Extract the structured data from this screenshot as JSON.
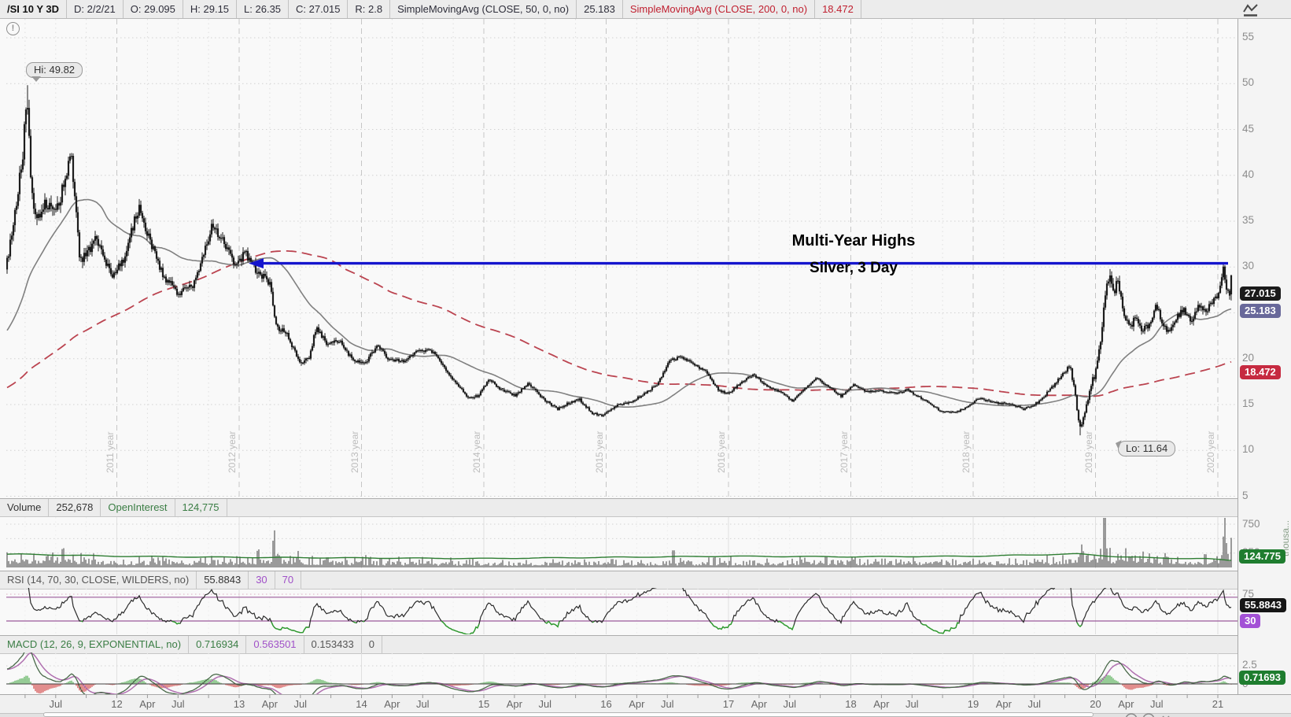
{
  "header": {
    "cells": [
      {
        "text": "/SI 10 Y 3D"
      },
      {
        "text": "D: 2/2/21"
      },
      {
        "text": "O: 29.095"
      },
      {
        "text": "H: 29.15"
      },
      {
        "text": "L: 26.35"
      },
      {
        "text": "C: 27.015"
      },
      {
        "text": "R: 2.8"
      },
      {
        "text": "SimpleMovingAvg (CLOSE, 50, 0, no)"
      },
      {
        "text": "25.183"
      },
      {
        "text": "SimpleMovingAvg (CLOSE, 200, 0, no)"
      },
      {
        "text": "18.472"
      }
    ]
  },
  "main": {
    "hi_label": "Hi: 49.82",
    "lo_label": "Lo: 11.64",
    "annotation_line1": "Multi-Year Highs",
    "annotation_line2": "Silver, 3 Day",
    "price_axis_labels": [
      "55",
      "50",
      "45",
      "40",
      "35",
      "30",
      "20",
      "15",
      "10",
      "5"
    ],
    "year_labels": [
      "2011 year",
      "2012 year",
      "2013 year",
      "2014 year",
      "2015 year",
      "2016 year",
      "2017 year",
      "2018 year",
      "2019 year",
      "2020 year"
    ],
    "bubbles": {
      "close": "27.015",
      "sma50": "25.183",
      "sma200": "18.472"
    }
  },
  "volume": {
    "label": "Volume",
    "value": "252,678",
    "oi_label": "OpenInterest",
    "oi_value": "124,775",
    "axis_labels": [
      "750",
      "250"
    ],
    "bubble": "124.775",
    "unit": "thousa..."
  },
  "rsi": {
    "label": "RSI (14, 70, 30, CLOSE, WILDERS, no)",
    "value": "55.8843",
    "param_low": "30",
    "param_high": "70",
    "axis_label": "75",
    "bubble_value": "55.8843",
    "bubble_low": "30"
  },
  "macd": {
    "label": "MACD (12, 26, 9, EXPONENTIAL, no)",
    "value": "0.716934",
    "signal": "0.563501",
    "hist": "0.153433",
    "zero": "0",
    "axis_high": "2.5",
    "axis_zero": "0",
    "bubble": "0.71693"
  },
  "time_axis": {
    "labels": [
      "Jul",
      "12",
      "Apr",
      "Jul",
      "13",
      "Apr",
      "Jul",
      "14",
      "Apr",
      "Jul",
      "15",
      "Apr",
      "Jul",
      "16",
      "Apr",
      "Jul",
      "17",
      "Apr",
      "Jul",
      "18",
      "Apr",
      "Jul",
      "19",
      "Apr",
      "Jul",
      "20",
      "Apr",
      "Jul",
      "21"
    ]
  },
  "colors": {
    "annotation_blue": "#1515cd",
    "sma50_line": "#808080",
    "sma200_line": "#bb4450",
    "candle": "#1d1d1d",
    "close_bubble": "#1b1b1b",
    "sma50_bubble": "#68689a",
    "sma200_bubble": "#c62a40",
    "green_bubble": "#1f7d2f",
    "purple_bubble": "#a351d6",
    "rsi_band": "#9a5a9a",
    "macd_line": "#4a6a4a",
    "macd_signal": "#b070b0",
    "hist_up": "#33a033",
    "hist_down": "#cc2222",
    "open_interest": "#2e7d32"
  },
  "chart_data": {
    "type": "candlestick",
    "title": "/SI 10 Y 3D (Silver futures, 10 year, 3-day bars)",
    "last_bar": {
      "date": "2/2/21",
      "open": 29.095,
      "high": 29.15,
      "low": 26.35,
      "close": 27.015,
      "range": 2.8
    },
    "hi": 49.82,
    "lo": 11.64,
    "sma50_last": 25.183,
    "sma200_last": 18.472,
    "volume_last": 252678,
    "open_interest_last": 124775,
    "rsi_last": 55.8843,
    "macd_last": {
      "value": 0.716934,
      "signal": 0.563501,
      "hist": 0.153433
    },
    "blue_line_price": 30.4,
    "x_domain_years": [
      2011.086,
      2021.096
    ],
    "y_axis": {
      "min": 5,
      "max": 55,
      "step": 5
    },
    "volume_axis_gridlines": [
      250,
      500,
      750
    ],
    "rsi_lines": {
      "upper": 70,
      "lower": 30,
      "dotted": 75
    },
    "macd_gridline": 2.5,
    "price_anchors": [
      [
        2008.7,
        12.0
      ],
      [
        2009.0,
        12.8
      ],
      [
        2009.4,
        13.5
      ],
      [
        2009.8,
        16.5
      ],
      [
        2010.2,
        17.5
      ],
      [
        2010.6,
        18.6
      ],
      [
        2010.85,
        23.5
      ],
      [
        2011.0,
        28.5
      ],
      [
        2011.09,
        29.5
      ],
      [
        2011.17,
        36
      ],
      [
        2011.23,
        42
      ],
      [
        2011.262,
        49.0
      ],
      [
        2011.3,
        39
      ],
      [
        2011.34,
        34.5
      ],
      [
        2011.42,
        37
      ],
      [
        2011.5,
        35.5
      ],
      [
        2011.58,
        40
      ],
      [
        2011.63,
        42
      ],
      [
        2011.7,
        30.5
      ],
      [
        2011.76,
        31.5
      ],
      [
        2011.83,
        33.5
      ],
      [
        2011.9,
        31
      ],
      [
        2011.96,
        29
      ],
      [
        2012.05,
        30.5
      ],
      [
        2012.12,
        34
      ],
      [
        2012.18,
        36.5
      ],
      [
        2012.28,
        32.5
      ],
      [
        2012.38,
        29
      ],
      [
        2012.5,
        27.2
      ],
      [
        2012.62,
        27.8
      ],
      [
        2012.7,
        31
      ],
      [
        2012.78,
        34.5
      ],
      [
        2012.88,
        32.5
      ],
      [
        2012.97,
        30
      ],
      [
        2013.05,
        31.5
      ],
      [
        2013.15,
        29.5
      ],
      [
        2013.25,
        28.3
      ],
      [
        2013.3,
        23.5
      ],
      [
        2013.4,
        22.5
      ],
      [
        2013.49,
        19.5
      ],
      [
        2013.57,
        20
      ],
      [
        2013.63,
        23.5
      ],
      [
        2013.72,
        21.5
      ],
      [
        2013.82,
        22
      ],
      [
        2013.93,
        19.8
      ],
      [
        2014.03,
        19.5
      ],
      [
        2014.13,
        21.5
      ],
      [
        2014.22,
        20
      ],
      [
        2014.35,
        19.7
      ],
      [
        2014.47,
        21
      ],
      [
        2014.58,
        20.8
      ],
      [
        2014.68,
        19
      ],
      [
        2014.78,
        17.2
      ],
      [
        2014.88,
        15.6
      ],
      [
        2014.96,
        16
      ],
      [
        2015.04,
        17.8
      ],
      [
        2015.14,
        16.6
      ],
      [
        2015.26,
        16
      ],
      [
        2015.36,
        17.3
      ],
      [
        2015.48,
        15.7
      ],
      [
        2015.6,
        14.5
      ],
      [
        2015.7,
        15.2
      ],
      [
        2015.78,
        15.6
      ],
      [
        2015.88,
        14.1
      ],
      [
        2015.97,
        13.8
      ],
      [
        2016.08,
        14.9
      ],
      [
        2016.2,
        15.3
      ],
      [
        2016.32,
        16.2
      ],
      [
        2016.42,
        17.3
      ],
      [
        2016.52,
        19.8
      ],
      [
        2016.62,
        20.2
      ],
      [
        2016.72,
        19.3
      ],
      [
        2016.82,
        18.5
      ],
      [
        2016.92,
        16.5
      ],
      [
        2017.0,
        16.2
      ],
      [
        2017.1,
        17.4
      ],
      [
        2017.2,
        18.3
      ],
      [
        2017.32,
        17
      ],
      [
        2017.45,
        16.2
      ],
      [
        2017.52,
        15.4
      ],
      [
        2017.63,
        16.8
      ],
      [
        2017.72,
        17.9
      ],
      [
        2017.83,
        16.8
      ],
      [
        2017.92,
        15.9
      ],
      [
        2018.02,
        17.2
      ],
      [
        2018.12,
        16.4
      ],
      [
        2018.25,
        16.5
      ],
      [
        2018.37,
        16.2
      ],
      [
        2018.46,
        16.6
      ],
      [
        2018.56,
        15.8
      ],
      [
        2018.66,
        15
      ],
      [
        2018.73,
        14.3
      ],
      [
        2018.85,
        14.1
      ],
      [
        2018.95,
        14.7
      ],
      [
        2019.05,
        15.7
      ],
      [
        2019.17,
        15.2
      ],
      [
        2019.3,
        15
      ],
      [
        2019.42,
        14.5
      ],
      [
        2019.55,
        15.4
      ],
      [
        2019.65,
        17
      ],
      [
        2019.73,
        18.2
      ],
      [
        2019.79,
        19.3
      ],
      [
        2019.83,
        16.5
      ],
      [
        2019.87,
        12.2
      ],
      [
        2019.91,
        14.2
      ],
      [
        2019.96,
        17
      ],
      [
        2020.0,
        18.5
      ],
      [
        2020.04,
        22
      ],
      [
        2020.08,
        26.5
      ],
      [
        2020.11,
        29.3
      ],
      [
        2020.15,
        27
      ],
      [
        2020.18,
        28.6
      ],
      [
        2020.23,
        25.2
      ],
      [
        2020.28,
        23.4
      ],
      [
        2020.33,
        24.6
      ],
      [
        2020.38,
        22.9
      ],
      [
        2020.44,
        23.8
      ],
      [
        2020.5,
        25.8
      ],
      [
        2020.55,
        23.5
      ],
      [
        2020.6,
        22.8
      ],
      [
        2020.66,
        24.5
      ],
      [
        2020.72,
        25.5
      ],
      [
        2020.78,
        24.2
      ],
      [
        2020.84,
        25.6
      ],
      [
        2020.9,
        25
      ],
      [
        2020.96,
        26.2
      ],
      [
        2021.0,
        26.8
      ],
      [
        2021.03,
        28.5
      ],
      [
        2021.05,
        30.0
      ],
      [
        2021.07,
        27.3
      ],
      [
        2021.1,
        27.0
      ]
    ],
    "volatility_anchors": [
      [
        2008.7,
        0.8
      ],
      [
        2011.05,
        1.3
      ],
      [
        2011.3,
        1.7
      ],
      [
        2011.8,
        1.4
      ],
      [
        2012.3,
        1.0
      ],
      [
        2013.25,
        1.2
      ],
      [
        2013.6,
        1.0
      ],
      [
        2014.2,
        0.75
      ],
      [
        2015.0,
        0.65
      ],
      [
        2016.0,
        0.7
      ],
      [
        2017.0,
        0.5
      ],
      [
        2018.0,
        0.45
      ],
      [
        2019.0,
        0.5
      ],
      [
        2019.8,
        0.8
      ],
      [
        2019.9,
        1.6
      ],
      [
        2020.15,
        1.6
      ],
      [
        2020.5,
        1.1
      ],
      [
        2021.09,
        1.2
      ]
    ],
    "volume_anchors": [
      [
        2008.7,
        90
      ],
      [
        2011.1,
        170
      ],
      [
        2011.4,
        200
      ],
      [
        2012.0,
        120
      ],
      [
        2012.8,
        110
      ],
      [
        2013.25,
        190
      ],
      [
        2013.6,
        130
      ],
      [
        2014.5,
        100
      ],
      [
        2015.5,
        95
      ],
      [
        2016.5,
        110
      ],
      [
        2017.5,
        115
      ],
      [
        2018.5,
        115
      ],
      [
        2019.6,
        130
      ],
      [
        2019.9,
        200
      ],
      [
        2020.1,
        230
      ],
      [
        2020.6,
        140
      ],
      [
        2020.9,
        130
      ],
      [
        2021.0,
        160
      ],
      [
        2021.09,
        280
      ]
    ],
    "volume_spikes": [
      [
        2013.285,
        650
      ],
      [
        2016.55,
        280
      ],
      [
        2019.885,
        330
      ],
      [
        2020.075,
        1050
      ],
      [
        2021.06,
        760
      ]
    ],
    "oi_anchors": [
      [
        2008.7,
        200
      ],
      [
        2011.2,
        230
      ],
      [
        2012.0,
        195
      ],
      [
        2013.0,
        175
      ],
      [
        2014.0,
        165
      ],
      [
        2015.0,
        155
      ],
      [
        2016.0,
        175
      ],
      [
        2017.0,
        195
      ],
      [
        2018.0,
        185
      ],
      [
        2019.0,
        195
      ],
      [
        2019.85,
        235
      ],
      [
        2020.2,
        185
      ],
      [
        2020.5,
        165
      ],
      [
        2020.9,
        150
      ],
      [
        2021.09,
        126
      ]
    ]
  }
}
